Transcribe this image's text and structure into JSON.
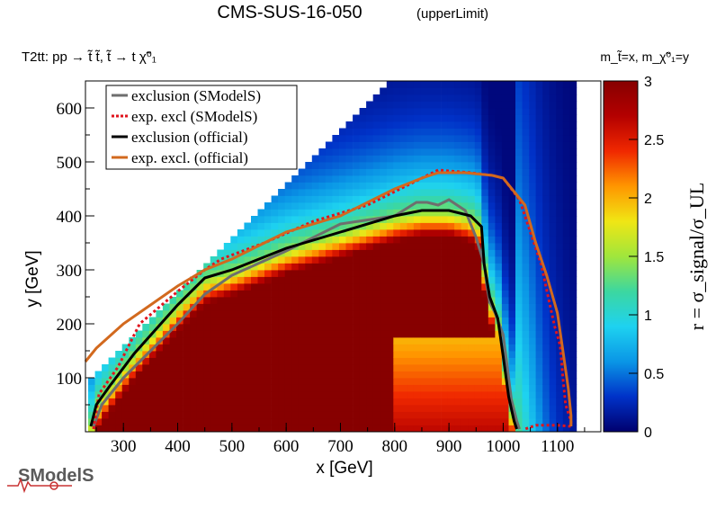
{
  "chart_data": {
    "type": "heatmap",
    "title": "CMS-SUS-16-050",
    "title_suffix": "(upperLimit)",
    "subtitle": "T2tt: pp → t̃ t̃, t̃ → t χ̃⁰₁",
    "mass_note": "m_t̃=x, m_χ̃⁰₁=y",
    "xlabel": "x [GeV]",
    "ylabel": "y [GeV]",
    "zlabel": "r = σ_signal/σ_UL",
    "xlim": [
      230,
      1180
    ],
    "ylim": [
      0,
      650
    ],
    "zlim": [
      0,
      3
    ],
    "xticks": [
      "300",
      "400",
      "500",
      "600",
      "700",
      "800",
      "900",
      "1000",
      "1100"
    ],
    "yticks": [
      "100",
      "200",
      "300",
      "400",
      "500",
      "600"
    ],
    "zticks": [
      "0",
      "0.5",
      "1",
      "1.5",
      "2",
      "2.5",
      "3"
    ],
    "grid": false,
    "legend_position": "top-left",
    "colorscale": [
      "#00006e",
      "#0032c8",
      "#0a96e6",
      "#1ed2f0",
      "#3cd7a0",
      "#a0e63c",
      "#f0e614",
      "#ff9600",
      "#f02800",
      "#b40000",
      "#870000"
    ],
    "legend": [
      {
        "label": "exclusion (SModelS)",
        "color": "#6e6e6e",
        "style": "solid"
      },
      {
        "label": "exp. excl (SModelS)",
        "color": "#e0141e",
        "style": "dotted"
      },
      {
        "label": "exclusion (official)",
        "color": "#000000",
        "style": "solid"
      },
      {
        "label": "exp. excl. (official)",
        "color": "#d2691e",
        "style": "solid"
      }
    ],
    "series": [
      {
        "name": "exclusion (SModelS)",
        "x": [
          245,
          260,
          300,
          350,
          400,
          450,
          500,
          600,
          700,
          800,
          840,
          860,
          880,
          900,
          930,
          950,
          965,
          970,
          975,
          985,
          1000,
          1015,
          1025,
          1030
        ],
        "y": [
          10,
          50,
          100,
          150,
          200,
          255,
          290,
          335,
          385,
          400,
          425,
          425,
          420,
          430,
          410,
          360,
          310,
          270,
          240,
          220,
          180,
          60,
          20,
          5
        ]
      },
      {
        "name": "exp. excl (SModelS)",
        "x": [
          245,
          255,
          290,
          330,
          400,
          450,
          480,
          560,
          650,
          750,
          850,
          880,
          940,
          980,
          1000,
          1030,
          1050,
          1070,
          1085,
          1095,
          1105,
          1110,
          1115,
          1125,
          1125,
          1100,
          1060,
          1040
        ],
        "y": [
          5,
          70,
          120,
          200,
          260,
          300,
          320,
          350,
          390,
          420,
          470,
          485,
          480,
          475,
          470,
          430,
          370,
          310,
          240,
          195,
          160,
          100,
          50,
          20,
          10,
          12,
          12,
          5
        ]
      },
      {
        "name": "exclusion (official)",
        "x": [
          240,
          250,
          275,
          320,
          400,
          450,
          500,
          600,
          700,
          800,
          850,
          900,
          940,
          960,
          965,
          975,
          990,
          1000,
          1010,
          1020,
          1025
        ],
        "y": [
          10,
          50,
          85,
          145,
          235,
          285,
          300,
          340,
          370,
          400,
          410,
          410,
          400,
          380,
          310,
          250,
          210,
          140,
          65,
          20,
          5
        ]
      },
      {
        "name": "exp. excl. (official)",
        "x": [
          230,
          250,
          300,
          350,
          400,
          450,
          500,
          560,
          600,
          700,
          760,
          800,
          850,
          880,
          930,
          980,
          1000,
          1040,
          1060,
          1080,
          1100,
          1110,
          1120,
          1125,
          1125
        ],
        "y": [
          130,
          155,
          200,
          235,
          270,
          300,
          320,
          350,
          370,
          400,
          430,
          450,
          470,
          480,
          480,
          475,
          470,
          420,
          350,
          290,
          220,
          150,
          80,
          30,
          10
        ]
      }
    ]
  }
}
